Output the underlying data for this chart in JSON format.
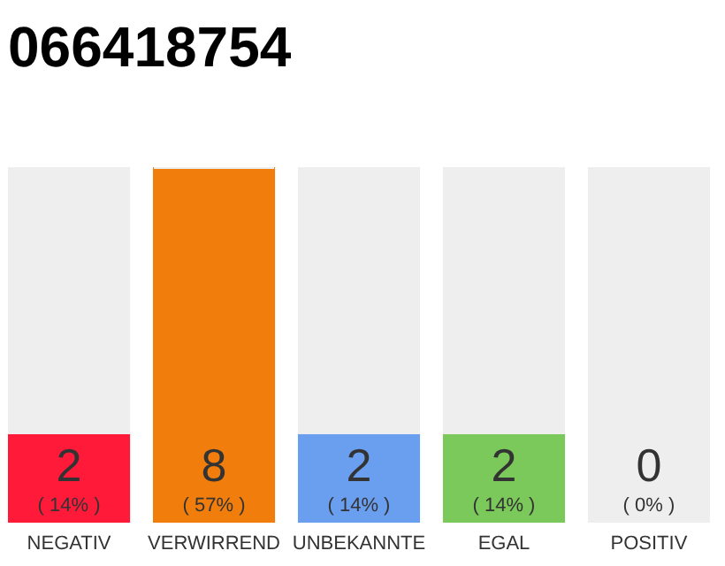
{
  "chart_data": {
    "type": "bar",
    "title": "066418754",
    "categories": [
      "NEGATIV",
      "VERWIRREND",
      "UNBEKANNTE",
      "EGAL",
      "POSITIV"
    ],
    "stacked": true,
    "series": [
      {
        "colors": [
          "#ff1a3a",
          "#f07d0c",
          "#6a9ff0",
          "#7ac95a",
          "#eeeeee"
        ],
        "values": [
          2,
          8,
          2,
          2,
          0
        ],
        "value_labels": [
          "2",
          "8",
          "2",
          "2",
          "0"
        ]
      },
      {
        "color": "#eeeeee",
        "values": [
          6,
          0,
          6,
          6,
          8
        ],
        "value_labels": [
          null,
          null,
          null,
          null,
          null
        ]
      }
    ],
    "annotations": [
      {
        "text": "( 14% )",
        "x": "NEGATIV",
        "y": 0
      },
      {
        "text": "( 57% )",
        "x": "VERWIRREND",
        "y": 0
      },
      {
        "text": "( 14% )",
        "x": "UNBEKANNTE",
        "y": 0
      },
      {
        "text": "( 14% )",
        "x": "EGAL",
        "y": 0
      },
      {
        "text": "( 0% )",
        "x": "POSITIV",
        "y": 0
      }
    ],
    "tick_labels": "x"
  }
}
